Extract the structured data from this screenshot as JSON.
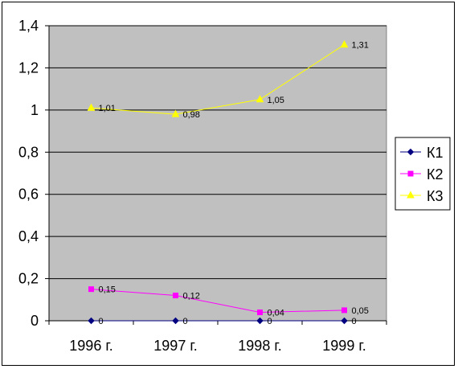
{
  "chart_data": {
    "type": "line",
    "categories": [
      "1996 г.",
      "1997 г.",
      "1998 г.",
      "1999 г."
    ],
    "ylim": [
      0,
      1.4
    ],
    "yticks": [
      "0",
      "0,2",
      "0,4",
      "0,6",
      "0,8",
      "1",
      "1,2",
      "1,4"
    ],
    "ytick_values": [
      0,
      0.2,
      0.4,
      0.6,
      0.8,
      1.0,
      1.2,
      1.4
    ],
    "grid": true,
    "legend_position": "right",
    "plot_background": "#C0C0C0",
    "series": [
      {
        "name": "К1",
        "values": [
          0,
          0,
          0,
          0
        ],
        "labels": [
          "0",
          "0",
          "0",
          "0"
        ],
        "color": "#000080",
        "marker": "diamond"
      },
      {
        "name": "К2",
        "values": [
          0.15,
          0.12,
          0.04,
          0.05
        ],
        "labels": [
          "0,15",
          "0,12",
          "0,04",
          "0,05"
        ],
        "color": "#FF00FF",
        "marker": "square"
      },
      {
        "name": "К3",
        "values": [
          1.01,
          0.98,
          1.05,
          1.31
        ],
        "labels": [
          "1,01",
          "0,98",
          "1,05",
          "1,31"
        ],
        "color": "#FFFF00",
        "marker": "triangle"
      }
    ]
  }
}
